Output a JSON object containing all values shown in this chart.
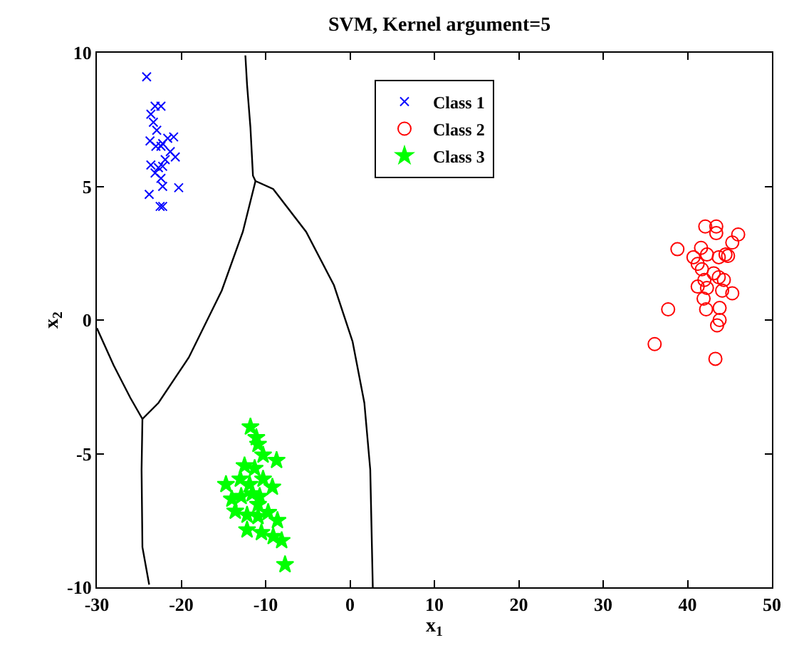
{
  "chart_data": {
    "type": "scatter",
    "title": "SVM, Kernel argument=5",
    "xlabel": "x$_{1}$",
    "ylabel": "x$_{2}$",
    "xlim": [
      -30,
      50
    ],
    "xticks": [
      -30,
      -20,
      -10,
      0,
      10,
      20,
      30,
      40,
      50
    ],
    "ylim": [
      -10,
      10
    ],
    "yticks": [
      -10,
      -5,
      0,
      5,
      10
    ],
    "grid": false,
    "legend": "top",
    "series": [
      {
        "name": "Class 1",
        "color": "#0000ff",
        "marker": "cross",
        "x": [
          -24.1,
          -23.1,
          -22.4,
          -23.6,
          -23.3,
          -22.9,
          -23.7,
          -23.0,
          -22.2,
          -21.6,
          -20.9,
          -21.3,
          -20.7,
          -22.4,
          -21.9,
          -23.6,
          -22.7,
          -22.2,
          -23.1,
          -22.4,
          -22.2,
          -20.3,
          -23.8,
          -22.2,
          -22.5
        ],
        "values": [
          9.1,
          8.0,
          8.0,
          7.7,
          7.4,
          7.1,
          6.7,
          6.5,
          6.6,
          6.8,
          6.85,
          6.3,
          6.1,
          6.5,
          6.0,
          5.8,
          5.7,
          5.75,
          5.5,
          5.3,
          5.0,
          4.95,
          4.7,
          4.25,
          4.25
        ]
      },
      {
        "name": "Class 2",
        "color": "#ff0000",
        "marker": "circle",
        "x": [
          42.1,
          43.4,
          43.4,
          46.0,
          45.3,
          38.8,
          41.6,
          44.5,
          44.8,
          43.7,
          42.3,
          40.7,
          41.2,
          41.7,
          43.1,
          43.7,
          44.3,
          42.0,
          41.2,
          42.3,
          44.1,
          45.3,
          41.9,
          37.7,
          42.2,
          43.8,
          43.8,
          43.5,
          36.1,
          43.3
        ],
        "values": [
          3.5,
          3.5,
          3.25,
          3.2,
          2.9,
          2.65,
          2.7,
          2.45,
          2.4,
          2.35,
          2.45,
          2.35,
          2.1,
          1.9,
          1.75,
          1.6,
          1.5,
          1.5,
          1.25,
          1.2,
          1.1,
          1.0,
          0.8,
          0.4,
          0.4,
          0.45,
          0.0,
          -0.2,
          -0.9,
          -1.45
        ]
      },
      {
        "name": "Class 3",
        "color": "#00ff00",
        "marker": "star",
        "x": [
          -11.8,
          -11.1,
          -10.9,
          -10.3,
          -8.7,
          -12.5,
          -11.3,
          -13.0,
          -10.3,
          -14.7,
          -11.9,
          -9.2,
          -11.6,
          -10.7,
          -14.0,
          -12.9,
          -10.9,
          -13.6,
          -12.2,
          -10.9,
          -9.7,
          -8.6,
          -12.2,
          -10.5,
          -9.1,
          -8.1,
          -7.7
        ],
        "values": [
          -4.0,
          -4.4,
          -4.65,
          -5.05,
          -5.25,
          -5.45,
          -5.55,
          -5.95,
          -5.95,
          -6.15,
          -6.15,
          -6.25,
          -6.5,
          -6.6,
          -6.7,
          -6.6,
          -6.9,
          -7.15,
          -7.3,
          -7.35,
          -7.2,
          -7.5,
          -7.85,
          -7.95,
          -8.1,
          -8.25,
          -9.15
        ]
      },
      {
        "type": "line",
        "color": "#000000",
        "marker": "none",
        "x": [
          -12.4,
          -12.2,
          -11.8,
          -11.5,
          -11.2
        ],
        "values": [
          9.9,
          8.8,
          7.2,
          5.4,
          5.2
        ]
      },
      {
        "type": "line",
        "color": "#000000",
        "marker": "none",
        "x": [
          -30,
          -28,
          -26.05,
          -24.6,
          -22.7,
          -19.1,
          -15.2,
          -12.7,
          -11.2
        ],
        "values": [
          -0.3,
          -1.7,
          -2.9,
          -3.7,
          -3.1,
          -1.4,
          1.1,
          3.3,
          5.2
        ]
      },
      {
        "type": "line",
        "color": "#000000",
        "marker": "none",
        "x": [
          -11.2,
          -9.1,
          -5.2,
          -1.9,
          0.3,
          1.7,
          2.4,
          2.7
        ],
        "values": [
          5.2,
          4.9,
          3.3,
          1.3,
          -0.8,
          -3.1,
          -5.6,
          -10
        ]
      },
      {
        "type": "line",
        "color": "#000000",
        "marker": "none",
        "x": [
          -24.6,
          -24.7,
          -24.6,
          -23.8
        ],
        "values": [
          -3.7,
          -5.6,
          -8.5,
          -9.9
        ]
      }
    ]
  }
}
